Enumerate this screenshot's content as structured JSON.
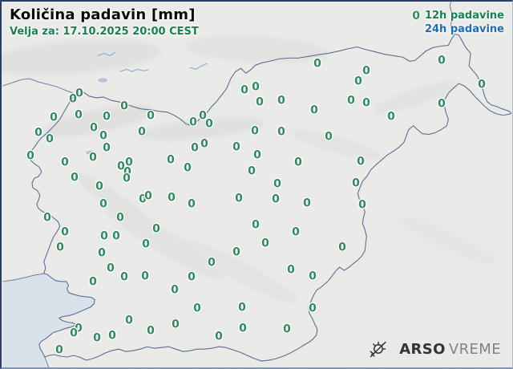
{
  "header": {
    "title": "Količina padavin [mm]",
    "valid_for": "Velja za: 17.10.2025 20:00 CEST"
  },
  "legend": {
    "marker_value": "0",
    "item_12h": {
      "label": "12h padavine"
    },
    "item_24h": {
      "label": "24h padavine"
    }
  },
  "brand": {
    "agency": "ARSO",
    "product": "VREME",
    "icon": "sun-with-rays-icon"
  },
  "map": {
    "region": "Slovenija",
    "stations": {
      "value": "0",
      "points": [
        [
          97,
          115
        ],
        [
          89,
          122
        ],
        [
          153,
          131
        ],
        [
          65,
          145
        ],
        [
          96,
          142
        ],
        [
          131,
          144
        ],
        [
          186,
          143
        ],
        [
          46,
          164
        ],
        [
          60,
          172
        ],
        [
          115,
          158
        ],
        [
          127,
          168
        ],
        [
          175,
          163
        ],
        [
          36,
          193
        ],
        [
          79,
          201
        ],
        [
          114,
          195
        ],
        [
          131,
          183
        ],
        [
          149,
          206
        ],
        [
          159,
          201
        ],
        [
          157,
          213
        ],
        [
          156,
          221
        ],
        [
          91,
          220
        ],
        [
          122,
          231
        ],
        [
          239,
          151
        ],
        [
          251,
          143
        ],
        [
          259,
          153
        ],
        [
          211,
          198
        ],
        [
          232,
          208
        ],
        [
          241,
          183
        ],
        [
          253,
          178
        ],
        [
          293,
          182
        ],
        [
          303,
          111
        ],
        [
          317,
          107
        ],
        [
          322,
          126
        ],
        [
          316,
          162
        ],
        [
          319,
          192
        ],
        [
          312,
          212
        ],
        [
          394,
          78
        ],
        [
          549,
          74
        ],
        [
          455,
          87
        ],
        [
          445,
          100
        ],
        [
          599,
          104
        ],
        [
          349,
          124
        ],
        [
          436,
          124
        ],
        [
          455,
          127
        ],
        [
          549,
          128
        ],
        [
          390,
          136
        ],
        [
          486,
          144
        ],
        [
          349,
          163
        ],
        [
          408,
          169
        ],
        [
          370,
          201
        ],
        [
          448,
          200
        ],
        [
          344,
          228
        ],
        [
          442,
          227
        ],
        [
          342,
          247
        ],
        [
          381,
          252
        ],
        [
          450,
          254
        ],
        [
          127,
          253
        ],
        [
          176,
          247
        ],
        [
          183,
          243
        ],
        [
          212,
          245
        ],
        [
          237,
          253
        ],
        [
          296,
          246
        ],
        [
          57,
          270
        ],
        [
          148,
          270
        ],
        [
          79,
          288
        ],
        [
          128,
          293
        ],
        [
          143,
          293
        ],
        [
          193,
          284
        ],
        [
          317,
          279
        ],
        [
          73,
          307
        ],
        [
          180,
          303
        ],
        [
          125,
          314
        ],
        [
          293,
          313
        ],
        [
          262,
          326
        ],
        [
          136,
          333
        ],
        [
          153,
          344
        ],
        [
          179,
          343
        ],
        [
          114,
          350
        ],
        [
          237,
          344
        ],
        [
          216,
          360
        ],
        [
          244,
          383
        ],
        [
          300,
          382
        ],
        [
          159,
          398
        ],
        [
          186,
          411
        ],
        [
          217,
          403
        ],
        [
          301,
          408
        ],
        [
          271,
          418
        ],
        [
          96,
          408
        ],
        [
          90,
          414
        ],
        [
          119,
          420
        ],
        [
          138,
          417
        ],
        [
          72,
          435
        ],
        [
          367,
          288
        ],
        [
          329,
          302
        ],
        [
          425,
          307
        ],
        [
          361,
          335
        ],
        [
          388,
          343
        ],
        [
          388,
          383
        ],
        [
          356,
          409
        ]
      ]
    }
  },
  "colors": {
    "land": "#ebecea",
    "sea": "#d9e1e9",
    "station_green": "#2f8a62",
    "subtitle_green": "#1a8053",
    "legend_green": "#1a8053",
    "legend_blue": "#1c6fb5",
    "border_line": "#5c6d95",
    "neighbor_line": "#6d7ea3",
    "river_blue": "#97b1d4",
    "frame_dark": "#2b3e64",
    "frame_right": "#a9b9cc",
    "frame_bottom": "#7d96b6",
    "brand_dark": "#30343b",
    "brand_light": "#7d848e"
  }
}
